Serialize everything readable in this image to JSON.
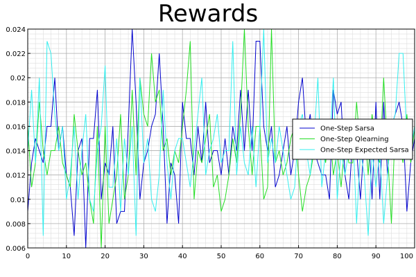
{
  "chart_data": {
    "type": "line",
    "title": "Rewards",
    "xlabel": "",
    "ylabel": "",
    "xlim": [
      0,
      100
    ],
    "ylim": [
      0.006,
      0.024
    ],
    "x_ticks": [
      0,
      10,
      20,
      30,
      40,
      50,
      60,
      70,
      80,
      90,
      100
    ],
    "y_ticks": [
      0.006,
      0.008,
      0.01,
      0.012,
      0.014,
      0.016,
      0.018,
      0.02,
      0.022,
      0.024
    ],
    "x_tick_labels": [
      "0",
      "10",
      "20",
      "30",
      "40",
      "50",
      "60",
      "70",
      "80",
      "90",
      "100"
    ],
    "y_tick_labels": [
      "0.006",
      "0.008",
      "0.01",
      "0.012",
      "0.014",
      "0.016",
      "0.018",
      "0.02",
      "0.022",
      "0.024"
    ],
    "grid": true,
    "legend_position": "right",
    "x": [
      0,
      1,
      2,
      3,
      4,
      5,
      6,
      7,
      8,
      9,
      10,
      11,
      12,
      13,
      14,
      15,
      16,
      17,
      18,
      19,
      20,
      21,
      22,
      23,
      24,
      25,
      26,
      27,
      28,
      29,
      30,
      31,
      32,
      33,
      34,
      35,
      36,
      37,
      38,
      39,
      40,
      41,
      42,
      43,
      44,
      45,
      46,
      47,
      48,
      49,
      50,
      51,
      52,
      53,
      54,
      55,
      56,
      57,
      58,
      59,
      60,
      61,
      62,
      63,
      64,
      65,
      66,
      67,
      68,
      69,
      70,
      71,
      72,
      73,
      74,
      75,
      76,
      77,
      78,
      79,
      80,
      81,
      82,
      83,
      84,
      85,
      86,
      87,
      88,
      89,
      90,
      91,
      92,
      93,
      94,
      95,
      96,
      97,
      98,
      99,
      100
    ],
    "series": [
      {
        "name": "One-Step Sarsa",
        "color": "#0000cc",
        "values": [
          0.009,
          0.013,
          0.015,
          0.014,
          0.013,
          0.016,
          0.016,
          0.02,
          0.014,
          0.016,
          0.012,
          0.011,
          0.007,
          0.014,
          0.015,
          0.006,
          0.015,
          0.015,
          0.019,
          0.01,
          0.013,
          0.012,
          0.016,
          0.008,
          0.009,
          0.009,
          0.016,
          0.024,
          0.018,
          0.01,
          0.013,
          0.014,
          0.016,
          0.017,
          0.022,
          0.016,
          0.008,
          0.013,
          0.012,
          0.008,
          0.018,
          0.015,
          0.015,
          0.012,
          0.016,
          0.013,
          0.018,
          0.013,
          0.014,
          0.014,
          0.012,
          0.015,
          0.012,
          0.016,
          0.014,
          0.019,
          0.014,
          0.019,
          0.014,
          0.023,
          0.023,
          0.016,
          0.014,
          0.016,
          0.011,
          0.012,
          0.014,
          0.016,
          0.012,
          0.014,
          0.018,
          0.02,
          0.015,
          0.017,
          0.014,
          0.013,
          0.012,
          0.012,
          0.01,
          0.019,
          0.017,
          0.018,
          0.012,
          0.01,
          0.015,
          0.014,
          0.01,
          0.015,
          0.016,
          0.01,
          0.018,
          0.01,
          0.018,
          0.012,
          0.016,
          0.017,
          0.018,
          0.016,
          0.009,
          0.013,
          0.015
        ]
      },
      {
        "name": "One-Step Qlearning",
        "color": "#22dd22",
        "values": [
          0.016,
          0.011,
          0.013,
          0.018,
          0.014,
          0.012,
          0.014,
          0.014,
          0.016,
          0.013,
          0.012,
          0.011,
          0.017,
          0.014,
          0.012,
          0.013,
          0.01,
          0.008,
          0.016,
          0.006,
          0.016,
          0.008,
          0.01,
          0.012,
          0.017,
          0.01,
          0.012,
          0.019,
          0.012,
          0.02,
          0.017,
          0.016,
          0.022,
          0.018,
          0.019,
          0.014,
          0.015,
          0.012,
          0.014,
          0.013,
          0.016,
          0.019,
          0.023,
          0.01,
          0.014,
          0.013,
          0.015,
          0.017,
          0.011,
          0.012,
          0.009,
          0.01,
          0.012,
          0.015,
          0.013,
          0.017,
          0.024,
          0.016,
          0.012,
          0.016,
          0.016,
          0.01,
          0.011,
          0.024,
          0.013,
          0.014,
          0.012,
          0.013,
          0.015,
          0.016,
          0.012,
          0.009,
          0.011,
          0.012,
          0.014,
          0.015,
          0.015,
          0.013,
          0.016,
          0.012,
          0.014,
          0.011,
          0.015,
          0.013,
          0.013,
          0.018,
          0.014,
          0.016,
          0.012,
          0.017,
          0.014,
          0.013,
          0.02,
          0.014,
          0.008,
          0.016,
          0.015,
          0.013,
          0.017,
          0.013,
          0.016
        ]
      },
      {
        "name": "One-Step Expected Sarsa",
        "color": "#33eeee",
        "values": [
          0.014,
          0.019,
          0.013,
          0.02,
          0.007,
          0.023,
          0.022,
          0.017,
          0.014,
          0.016,
          0.01,
          0.012,
          0.016,
          0.01,
          0.014,
          0.017,
          0.01,
          0.009,
          0.014,
          0.016,
          0.021,
          0.011,
          0.011,
          0.015,
          0.009,
          0.015,
          0.012,
          0.016,
          0.007,
          0.02,
          0.013,
          0.015,
          0.01,
          0.009,
          0.012,
          0.019,
          0.013,
          0.01,
          0.014,
          0.015,
          0.015,
          0.013,
          0.011,
          0.014,
          0.017,
          0.02,
          0.012,
          0.014,
          0.015,
          0.017,
          0.013,
          0.014,
          0.014,
          0.023,
          0.012,
          0.016,
          0.013,
          0.012,
          0.016,
          0.011,
          0.016,
          0.024,
          0.013,
          0.015,
          0.013,
          0.016,
          0.014,
          0.012,
          0.01,
          0.011,
          0.016,
          0.017,
          0.014,
          0.012,
          0.015,
          0.02,
          0.011,
          0.014,
          0.014,
          0.02,
          0.01,
          0.014,
          0.012,
          0.014,
          0.016,
          0.008,
          0.014,
          0.012,
          0.007,
          0.014,
          0.011,
          0.014,
          0.008,
          0.012,
          0.016,
          0.017,
          0.022,
          0.022,
          0.015,
          0.014,
          0.016
        ]
      }
    ]
  }
}
